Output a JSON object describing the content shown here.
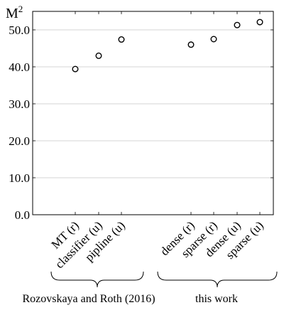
{
  "chart_data": {
    "type": "scatter",
    "ylabel": "M",
    "ylabel_superscript": "2",
    "ylim": [
      0,
      55
    ],
    "yticks": [
      "0.0",
      "10.0",
      "20.0",
      "30.0",
      "40.0",
      "50.0"
    ],
    "ytick_values": [
      0,
      10,
      20,
      30,
      40,
      50
    ],
    "grid": true,
    "categories": [
      "MT (r)",
      "classifier (u)",
      "pipline (u)",
      "dense (r)",
      "sparse (r)",
      "dense (u)",
      "sparse (u)"
    ],
    "values": [
      39.4,
      43.0,
      47.4,
      46.0,
      47.5,
      51.3,
      52.1
    ],
    "groups": [
      {
        "label": "Rozovskaya and Roth (2016)",
        "categories": [
          "MT (r)",
          "classifier (u)",
          "pipline (u)"
        ]
      },
      {
        "label": "this work",
        "categories": [
          "dense (r)",
          "sparse (r)",
          "dense (u)",
          "sparse (u)"
        ]
      }
    ],
    "marker": "open-circle"
  }
}
